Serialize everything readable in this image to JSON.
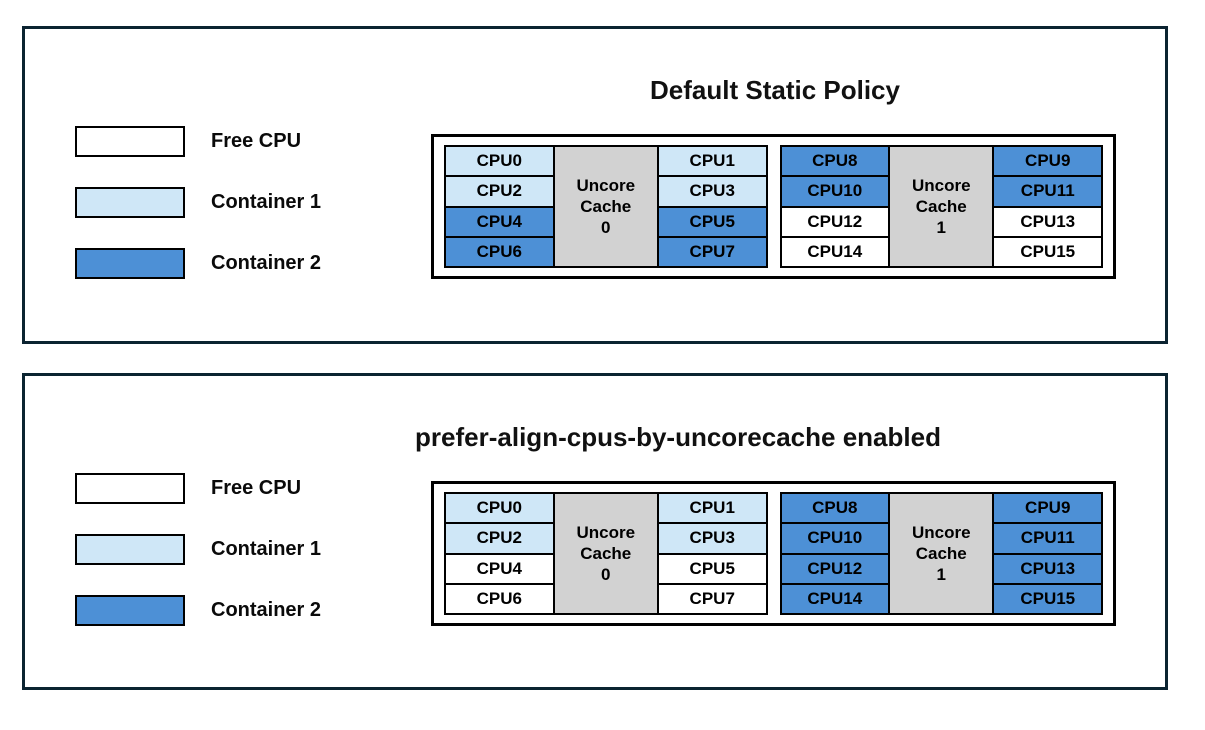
{
  "colors": {
    "free_cpu": "#ffffff",
    "container1": "#cfe7f7",
    "container2": "#4d90d6",
    "uncore_cache_bg": "#d2d2d2",
    "panel_border": "#0b2431",
    "cell_border": "#000000",
    "text": "#0a0a0a"
  },
  "legend": {
    "items": [
      {
        "id": "free-cpu",
        "label": "Free CPU",
        "color_key": "free_cpu"
      },
      {
        "id": "container-1",
        "label": "Container 1",
        "color_key": "container1"
      },
      {
        "id": "container-2",
        "label": "Container 2",
        "color_key": "container2"
      }
    ]
  },
  "panels": [
    {
      "id": "default-static",
      "title": "Default Static Policy",
      "groups": [
        {
          "cache_label_lines": [
            "Uncore",
            "Cache",
            "0"
          ],
          "left_cpus": [
            {
              "label": "CPU0",
              "owner": "container1"
            },
            {
              "label": "CPU2",
              "owner": "container1"
            },
            {
              "label": "CPU4",
              "owner": "container2"
            },
            {
              "label": "CPU6",
              "owner": "container2"
            }
          ],
          "right_cpus": [
            {
              "label": "CPU1",
              "owner": "container1"
            },
            {
              "label": "CPU3",
              "owner": "container1"
            },
            {
              "label": "CPU5",
              "owner": "container2"
            },
            {
              "label": "CPU7",
              "owner": "container2"
            }
          ]
        },
        {
          "cache_label_lines": [
            "Uncore",
            "Cache",
            "1"
          ],
          "left_cpus": [
            {
              "label": "CPU8",
              "owner": "container2"
            },
            {
              "label": "CPU10",
              "owner": "container2"
            },
            {
              "label": "CPU12",
              "owner": "free_cpu"
            },
            {
              "label": "CPU14",
              "owner": "free_cpu"
            }
          ],
          "right_cpus": [
            {
              "label": "CPU9",
              "owner": "container2"
            },
            {
              "label": "CPU11",
              "owner": "container2"
            },
            {
              "label": "CPU13",
              "owner": "free_cpu"
            },
            {
              "label": "CPU15",
              "owner": "free_cpu"
            }
          ]
        }
      ]
    },
    {
      "id": "prefer-align",
      "title": "prefer-align-cpus-by-uncorecache enabled",
      "groups": [
        {
          "cache_label_lines": [
            "Uncore",
            "Cache",
            "0"
          ],
          "left_cpus": [
            {
              "label": "CPU0",
              "owner": "container1"
            },
            {
              "label": "CPU2",
              "owner": "container1"
            },
            {
              "label": "CPU4",
              "owner": "free_cpu"
            },
            {
              "label": "CPU6",
              "owner": "free_cpu"
            }
          ],
          "right_cpus": [
            {
              "label": "CPU1",
              "owner": "container1"
            },
            {
              "label": "CPU3",
              "owner": "container1"
            },
            {
              "label": "CPU5",
              "owner": "free_cpu"
            },
            {
              "label": "CPU7",
              "owner": "free_cpu"
            }
          ]
        },
        {
          "cache_label_lines": [
            "Uncore",
            "Cache",
            "1"
          ],
          "left_cpus": [
            {
              "label": "CPU8",
              "owner": "container2"
            },
            {
              "label": "CPU10",
              "owner": "container2"
            },
            {
              "label": "CPU12",
              "owner": "container2"
            },
            {
              "label": "CPU14",
              "owner": "container2"
            }
          ],
          "right_cpus": [
            {
              "label": "CPU9",
              "owner": "container2"
            },
            {
              "label": "CPU11",
              "owner": "container2"
            },
            {
              "label": "CPU13",
              "owner": "container2"
            },
            {
              "label": "CPU15",
              "owner": "container2"
            }
          ]
        }
      ]
    }
  ]
}
